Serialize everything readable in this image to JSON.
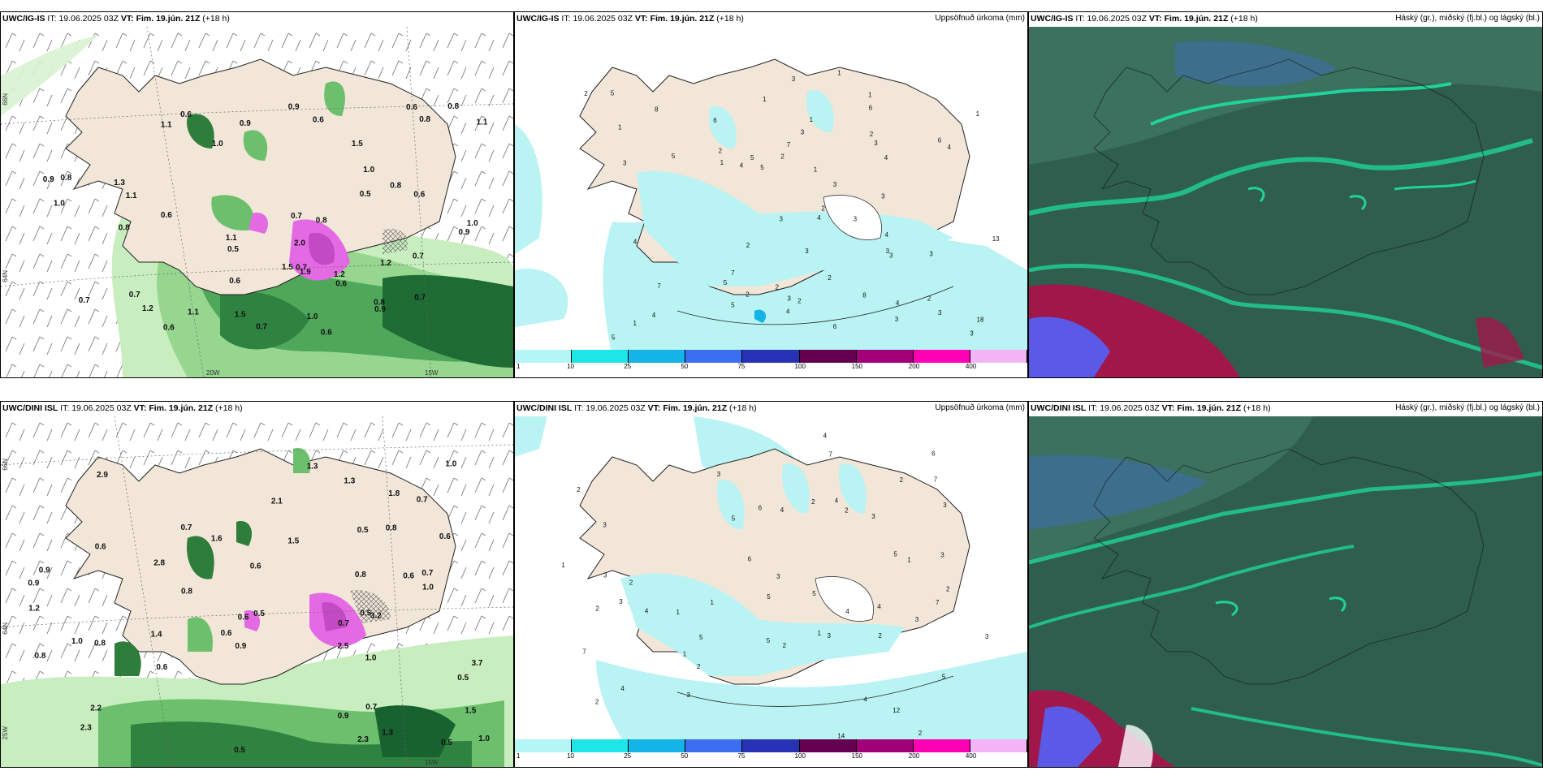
{
  "panels": {
    "p1": {
      "model": "UWC/IG-IS",
      "it_label": "IT:",
      "it_value": "19.06.2025 03Z",
      "vt_label": "VT:",
      "vt_value": "Fim. 19.jún. 21Z",
      "lead": "(+18 h)",
      "right_title": ""
    },
    "p2": {
      "model": "UWC/IG-IS",
      "it_label": "IT:",
      "it_value": "19.06.2025 03Z",
      "vt_label": "VT:",
      "vt_value": "Fim. 19.jún. 21Z",
      "lead": "(+18 h)",
      "right_title": "Uppsöfnuð úrkoma (mm)"
    },
    "p3": {
      "model": "UWC/IG-IS",
      "it_label": "IT:",
      "it_value": "19.06.2025 03Z",
      "vt_label": "VT:",
      "vt_value": "Fim. 19.jún. 21Z",
      "lead": "(+18 h)",
      "right_title": "Háský (gr.), miðský (fj.bl.) og lágský (bl.)"
    },
    "p4": {
      "model": "UWC/DINI ISL",
      "it_label": "IT:",
      "it_value": "19.06.2025 03Z",
      "vt_label": "VT:",
      "vt_value": "Fim. 19.jún. 21Z",
      "lead": "(+18 h)",
      "right_title": ""
    },
    "p5": {
      "model": "UWC/DINI ISL",
      "it_label": "IT:",
      "it_value": "19.06.2025 03Z",
      "vt_label": "VT:",
      "vt_value": "Fim. 19.jún. 21Z",
      "lead": "(+18 h)",
      "right_title": "Uppsöfnuð úrkoma (mm)"
    },
    "p6": {
      "model": "UWC/DINI ISL",
      "it_label": "IT:",
      "it_value": "19.06.2025 03Z",
      "vt_label": "VT:",
      "vt_value": "Fim. 19.jún. 21Z",
      "lead": "(+18 h)",
      "right_title": "Háský (gr.), miðský (fj.bl.) og lágský (bl.)"
    }
  },
  "axes": {
    "lat_66": "66N",
    "lat_64": "64N",
    "lon_20": "20W",
    "lon_15": "15W",
    "lon_25": "25W"
  },
  "colorbar": {
    "ticks": [
      "1",
      "10",
      "25",
      "50",
      "75",
      "100",
      "150",
      "200",
      "400"
    ],
    "colors": [
      "#b4f5f5",
      "#1ee6e6",
      "#14b4e6",
      "#3c6ef0",
      "#2832b4",
      "#640050",
      "#a00078",
      "#ff00b4",
      "#f5b4f5"
    ]
  },
  "colors": {
    "land": "#f1e6d8",
    "precip_light": "#b9f3f3",
    "green_light": "#c8eec0",
    "green_mid": "#6cbf6c",
    "green_dark": "#17622f",
    "cloud_bg": "#2f5e4e",
    "cloud_green": "#1fd39a",
    "cloud_red": "#a1174a",
    "cloud_blue": "#5a5ae6",
    "magenta": "#e46ae4"
  },
  "p1_labels": [
    "0.6",
    "1.1",
    "0.7",
    "1.3",
    "0.8",
    "1.0",
    "0.9",
    "0.6",
    "0.5",
    "1.2",
    "0.7",
    "0.9",
    "1.1",
    "0.7",
    "0.5",
    "0.6",
    "1.0",
    "0.8",
    "1.2",
    "0.6",
    "0.8",
    "1.9",
    "0.6",
    "0.9",
    "0.8",
    "1.0",
    "0.8",
    "1.1",
    "0.7",
    "1.0",
    "0.6",
    "0.8",
    "1.5",
    "1.1",
    "0.6",
    "1.5",
    "0.9",
    "0.8",
    "1.0",
    "1.2",
    "0.9",
    "0.7",
    "1.1",
    "0.7",
    "0.6",
    "0.7",
    "1.5",
    "0.6",
    "2.0"
  ],
  "p2_labels": [
    "1",
    "3",
    "2",
    "3",
    "1",
    "1",
    "2",
    "1",
    "4",
    "5",
    "3",
    "1",
    "2",
    "3",
    "8",
    "2",
    "3",
    "4",
    "3",
    "1",
    "2",
    "4",
    "4",
    "3",
    "3",
    "6",
    "5",
    "3",
    "4",
    "2",
    "3",
    "2",
    "1",
    "5",
    "4",
    "6",
    "3",
    "4",
    "3",
    "2",
    "5",
    "7",
    "6",
    "5",
    "3",
    "4",
    "7",
    "2",
    "13",
    "18",
    "1",
    "2",
    "5",
    "3",
    "7",
    "8",
    "6",
    "5",
    "3",
    "4",
    "1",
    "2",
    "3"
  ],
  "p4_labels": [
    "2.5",
    "3.7",
    "0.6",
    "0.5",
    "0.9",
    "0.8",
    "0.7",
    "0.6",
    "1.5",
    "1.3",
    "0.5",
    "0.7",
    "0.8",
    "1.0",
    "0.6",
    "0.5",
    "0.7",
    "1.0",
    "1.8",
    "1.6",
    "0.9",
    "1.2",
    "0.8",
    "1.3",
    "1.0",
    "2.2",
    "0.6",
    "0.5",
    "1.0",
    "0.8",
    "0.6",
    "1.3",
    "0.9",
    "0.7",
    "0.8",
    "2.3",
    "1.5",
    "0.5",
    "3.2",
    "2.3",
    "0.6",
    "1.4",
    "2.1",
    "0.5",
    "0.9",
    "0.7",
    "1.0",
    "2.8",
    "0.6",
    "2.9"
  ],
  "p5_labels": [
    "2",
    "3",
    "1",
    "2",
    "5",
    "3",
    "4",
    "1",
    "3",
    "6",
    "2",
    "12",
    "2",
    "3",
    "5",
    "7",
    "4",
    "3",
    "1",
    "2",
    "6",
    "4",
    "5",
    "3",
    "2",
    "3",
    "4",
    "5",
    "6",
    "7",
    "3",
    "2",
    "1",
    "4",
    "5",
    "3",
    "7",
    "4",
    "2",
    "14",
    "5",
    "2",
    "3",
    "4",
    "1",
    "2",
    "3",
    "7",
    "2",
    "5",
    "4",
    "3",
    "2",
    "1"
  ],
  "p1_title_extra": ""
}
